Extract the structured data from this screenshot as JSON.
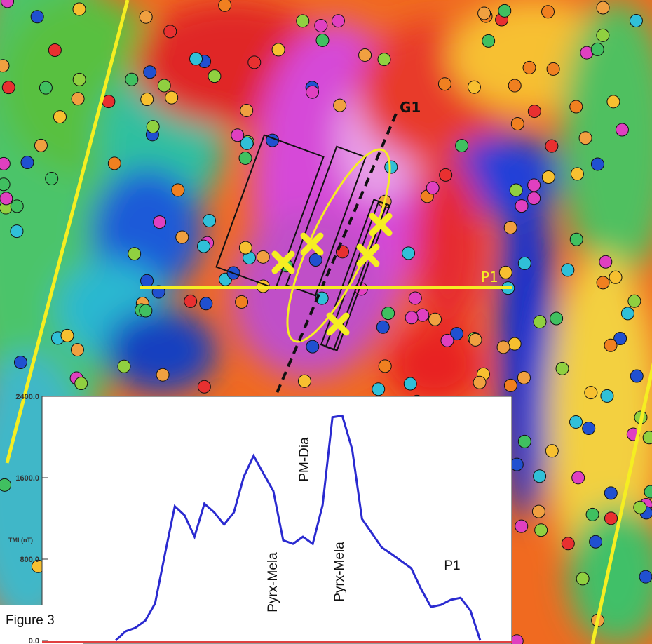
{
  "map": {
    "line_label": "G1",
    "profile_label": "P1",
    "figure_label": "Figure 3"
  },
  "chart_data": {
    "type": "line",
    "y_label": "TMI (nT)",
    "series": [
      {
        "name": null,
        "color": "#2a2ad0",
        "values": [
          0,
          90,
          125,
          195,
          365,
          850,
          1320,
          1230,
          1020,
          1345,
          1260,
          1140,
          1260,
          1610,
          1815,
          1640,
          1470,
          985,
          950,
          1020,
          950,
          1330,
          2195,
          2210,
          1880,
          1195,
          1055,
          915,
          850,
          780,
          710,
          505,
          330,
          350,
          400,
          420,
          295,
          0
        ]
      }
    ],
    "ylim": [
      0,
      2400
    ],
    "yticks": [
      {
        "value": 0,
        "label": "0.0"
      },
      {
        "value": 800,
        "label": "800.0"
      },
      {
        "value": 1600,
        "label": "1600.0"
      },
      {
        "value": 2400,
        "label": "2400.0"
      }
    ],
    "annotations": [
      "Pyrx-Mela",
      "PM-Dia",
      "Pyrx-Mela",
      "P1"
    ]
  }
}
